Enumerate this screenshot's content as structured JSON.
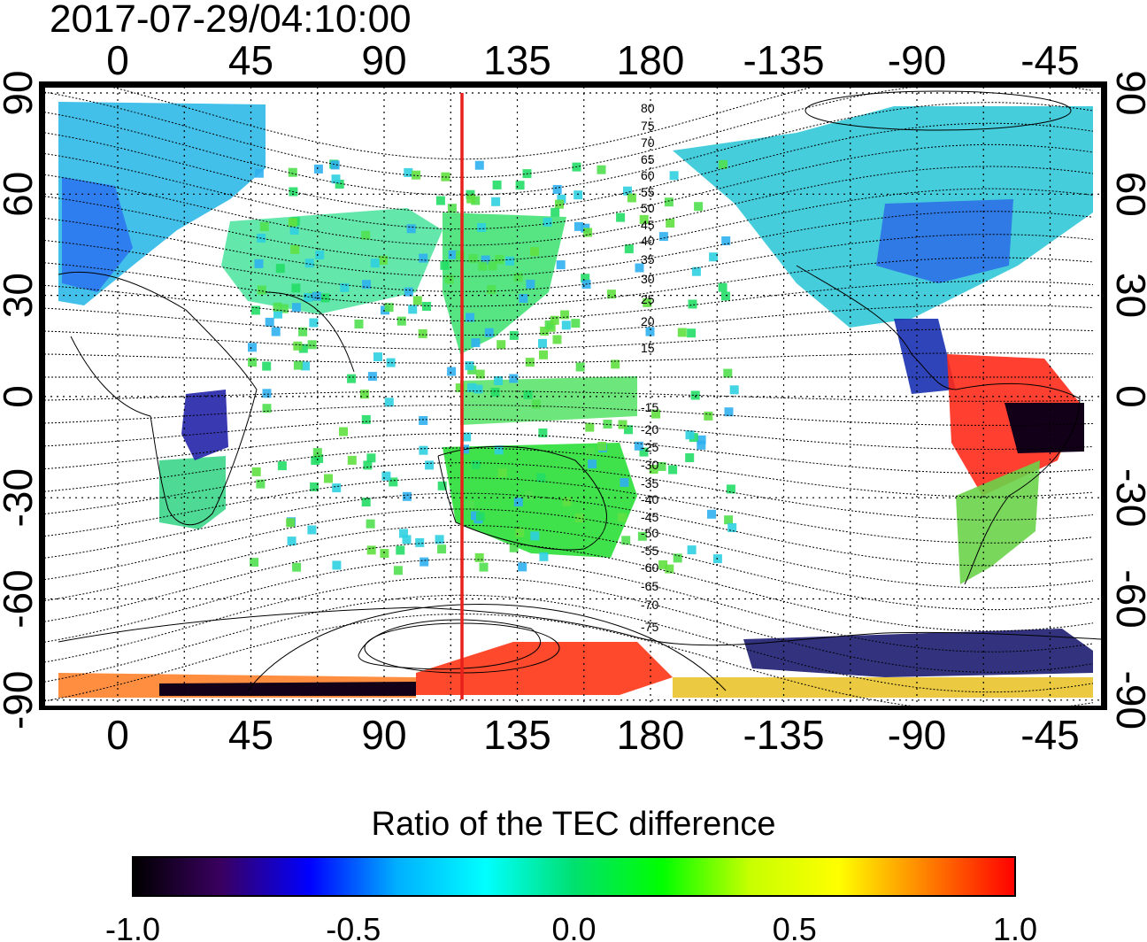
{
  "title": "2017-07-29/04:10:00",
  "map": {
    "top_axis_labels": [
      "0",
      "45",
      "90",
      "135",
      "180",
      "-135",
      "-90",
      "-45"
    ],
    "bottom_axis_labels": [
      "0",
      "45",
      "90",
      "135",
      "180",
      "-135",
      "-90",
      "-45"
    ],
    "left_axis_labels": [
      "90",
      "60",
      "30",
      "0",
      "-30",
      "-60",
      "-90"
    ],
    "right_axis_labels": [
      "90",
      "60",
      "30",
      "0",
      "-30",
      "-60",
      "-90"
    ],
    "contour_labels": [
      "80",
      "75",
      "70",
      "65",
      "60",
      "55",
      "50",
      "45",
      "40",
      "35",
      "30",
      "25",
      "20",
      "15",
      "-15",
      "-20",
      "-25",
      "-30",
      "-35",
      "-40",
      "-45",
      "-50",
      "-55",
      "-60",
      "-65",
      "-70",
      "-75"
    ],
    "marker_line_color": "#e8201c",
    "grid": "dotted"
  },
  "colorbar": {
    "title": "Ratio of the TEC difference",
    "tick_labels": [
      "-1.0",
      "-0.5",
      "0.0",
      "0.5",
      "1.0"
    ],
    "colors": [
      "#000000",
      "#3a0060",
      "#0000ff",
      "#00b0ff",
      "#00ffff",
      "#00e070",
      "#00ff00",
      "#c8ff00",
      "#ffff00",
      "#ff8000",
      "#ff0000"
    ]
  }
}
